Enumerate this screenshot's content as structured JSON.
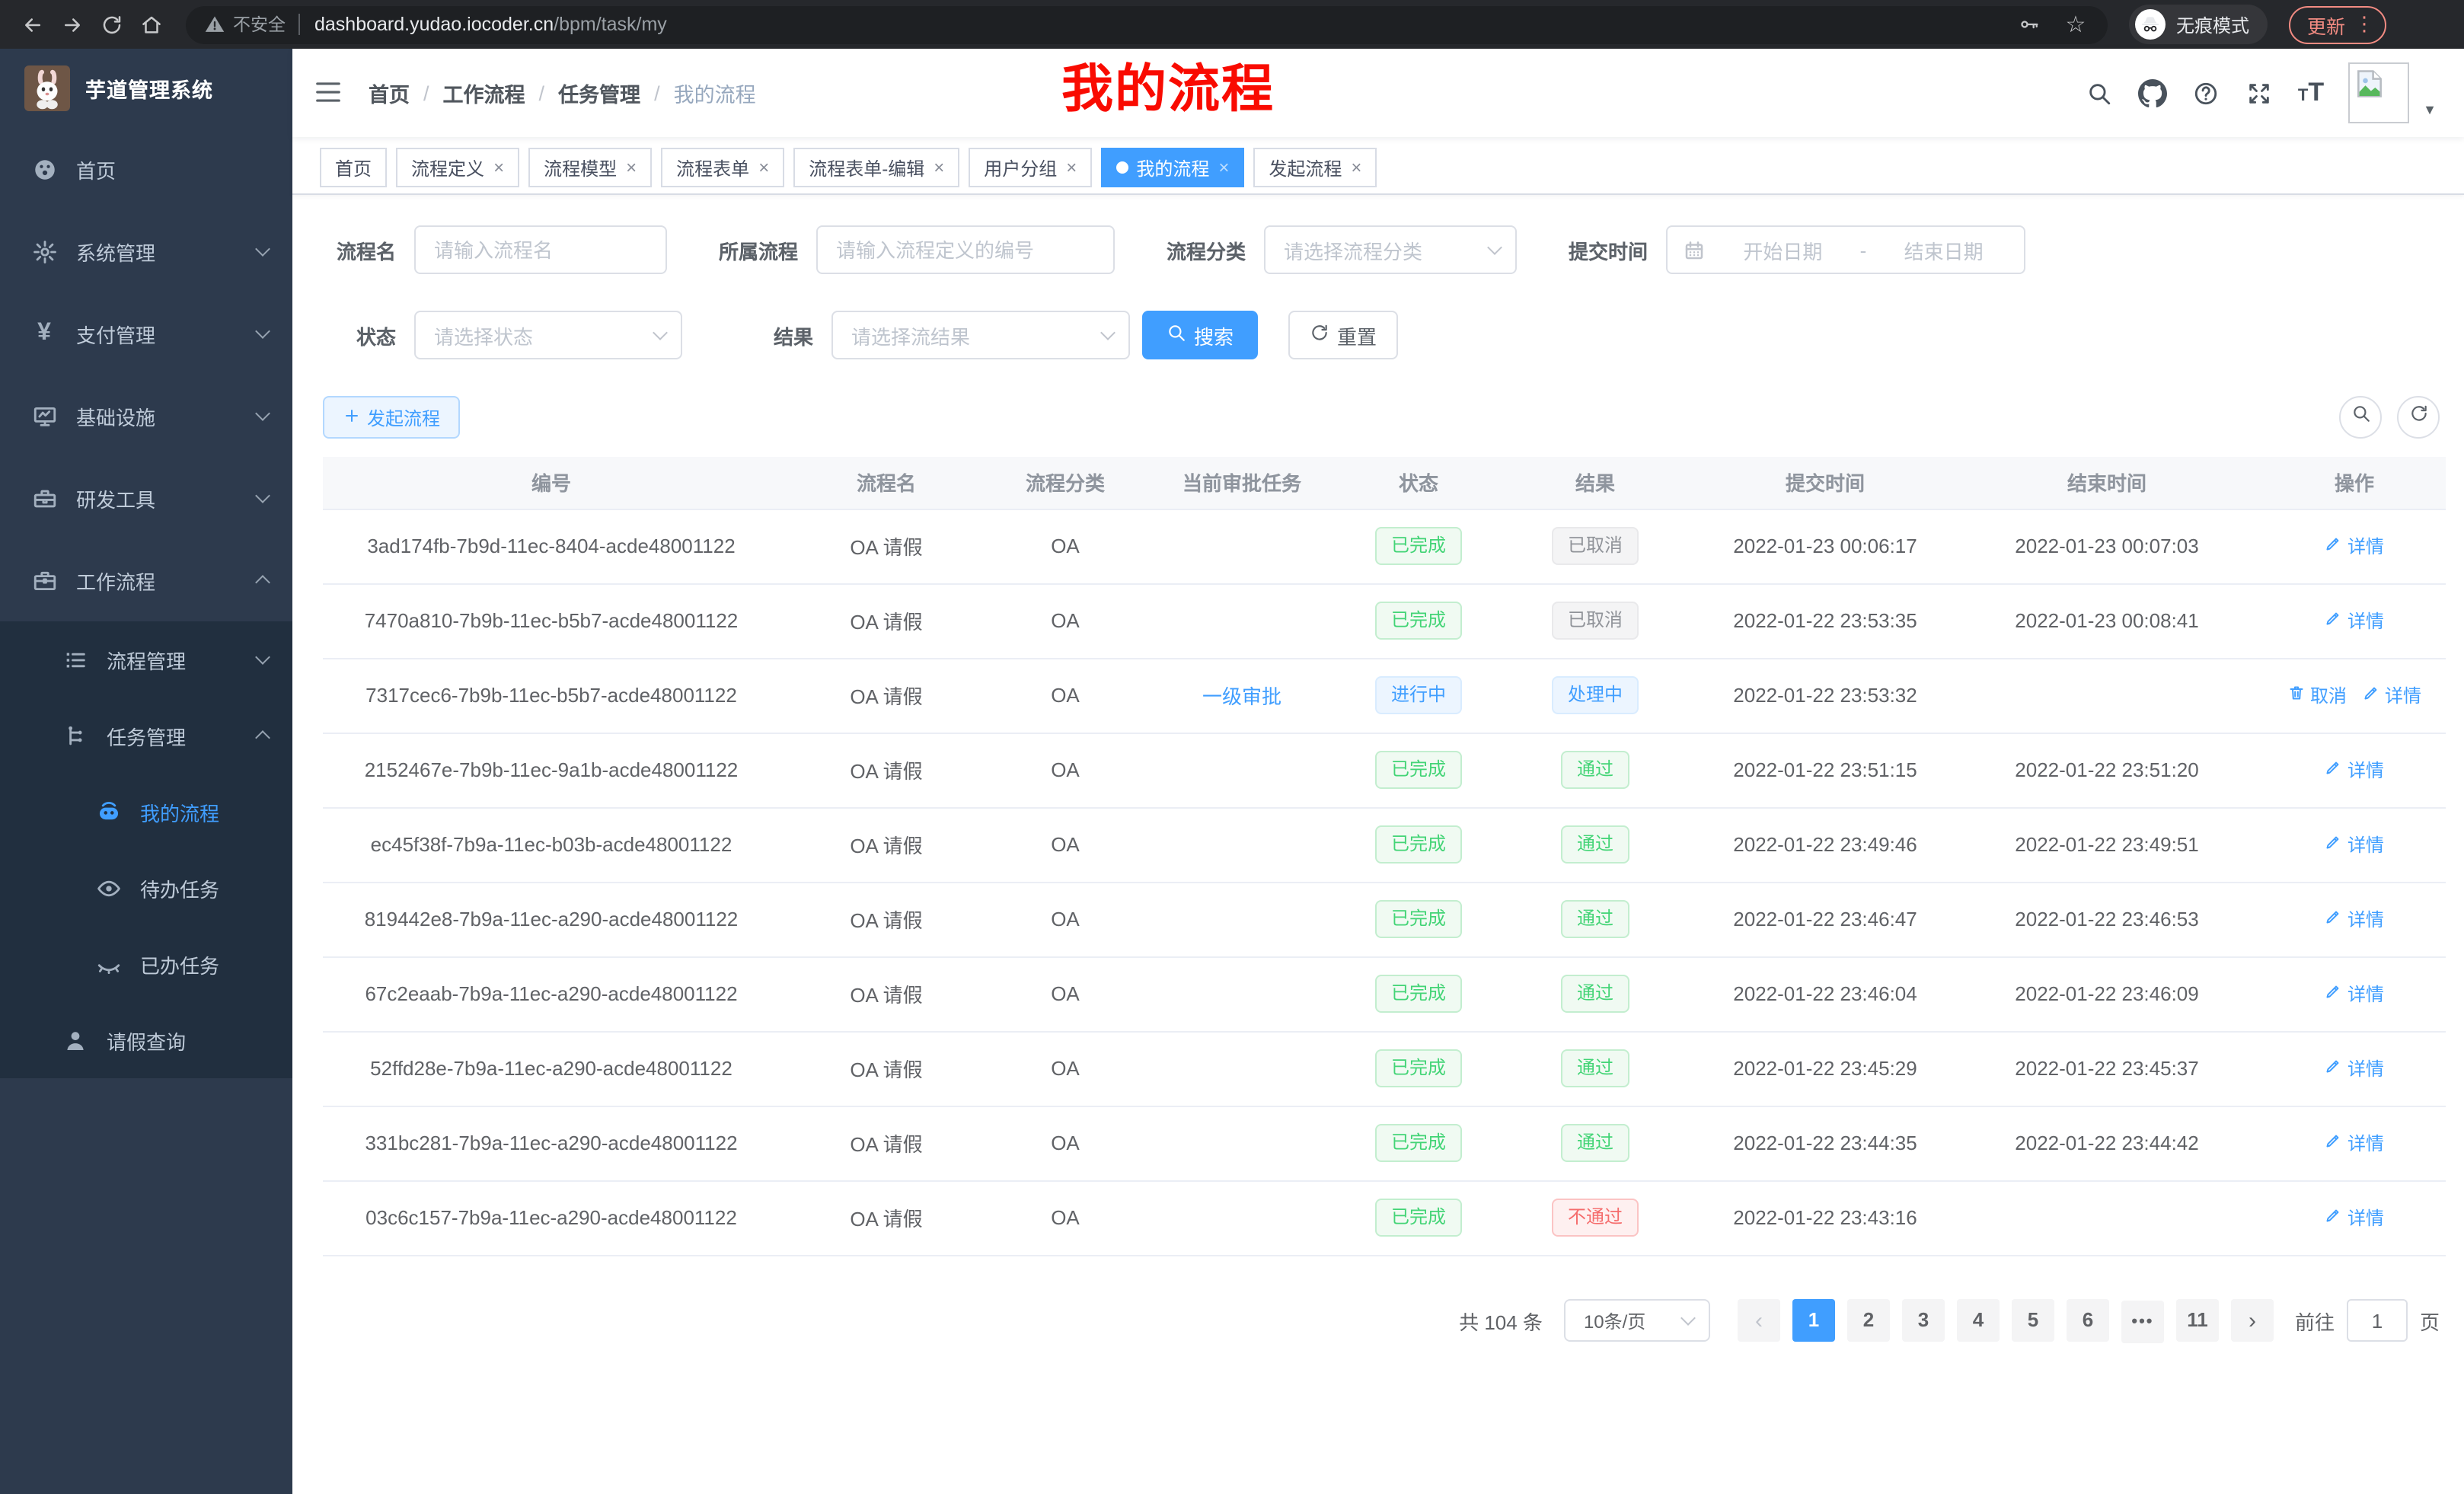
{
  "browser": {
    "security_label": "不安全",
    "url_host": "dashboard.yudao.iocoder.cn",
    "url_path": "/bpm/task/my",
    "incognito_label": "无痕模式",
    "update_label": "更新"
  },
  "colors": {
    "accent": "#409eff",
    "success": "#43d476",
    "info": "#909399",
    "danger": "#f56c6c",
    "annotation_red": "#f90b01",
    "sidebar_bg": "#2d3a4d",
    "submenu_bg": "#212f3f"
  },
  "sidebar": {
    "logo_title": "芋道管理系统",
    "items": [
      {
        "key": "home",
        "label": "首页",
        "icon": "dashboard-icon",
        "level": 1
      },
      {
        "key": "system",
        "label": "系统管理",
        "icon": "gear-icon",
        "level": 1,
        "chevron": "down"
      },
      {
        "key": "payment",
        "label": "支付管理",
        "icon": "yen-icon",
        "level": 1,
        "chevron": "down"
      },
      {
        "key": "infrastructure",
        "label": "基础设施",
        "icon": "monitor-icon",
        "level": 1,
        "chevron": "down"
      },
      {
        "key": "dev-tools",
        "label": "研发工具",
        "icon": "toolbox-icon",
        "level": 1,
        "chevron": "down"
      },
      {
        "key": "workflow",
        "label": "工作流程",
        "icon": "briefcase-icon",
        "level": 1,
        "chevron": "up"
      },
      {
        "key": "process-mgmt",
        "label": "流程管理",
        "icon": "list-icon",
        "level": 2,
        "chevron": "down"
      },
      {
        "key": "task-mgmt",
        "label": "任务管理",
        "icon": "tree-icon",
        "level": 2,
        "chevron": "up"
      },
      {
        "key": "my-process",
        "label": "我的流程",
        "icon": "robot-icon",
        "level": 3,
        "active": true
      },
      {
        "key": "todo-tasks",
        "label": "待办任务",
        "icon": "eye-icon",
        "level": 3
      },
      {
        "key": "done-tasks",
        "label": "已办任务",
        "icon": "eye-closed-icon",
        "level": 3
      },
      {
        "key": "leave-query",
        "label": "请假查询",
        "icon": "user-icon",
        "level": 2
      }
    ]
  },
  "header": {
    "breadcrumb": [
      "首页",
      "工作流程",
      "任务管理",
      "我的流程"
    ],
    "overlay_title": "我的流程",
    "right_icons": [
      "search-icon",
      "github-icon",
      "question-icon",
      "fullscreen-icon",
      "font-size-icon",
      "avatar",
      "caret-down-icon"
    ]
  },
  "tabs": [
    {
      "key": "home",
      "label": "首页",
      "closable": false,
      "active": false
    },
    {
      "key": "process-definition",
      "label": "流程定义",
      "closable": true,
      "active": false
    },
    {
      "key": "process-model",
      "label": "流程模型",
      "closable": true,
      "active": false
    },
    {
      "key": "process-form",
      "label": "流程表单",
      "closable": true,
      "active": false
    },
    {
      "key": "process-form-edit",
      "label": "流程表单-编辑",
      "closable": true,
      "active": false
    },
    {
      "key": "user-group",
      "label": "用户分组",
      "closable": true,
      "active": false
    },
    {
      "key": "my-process",
      "label": "我的流程",
      "closable": true,
      "active": true
    },
    {
      "key": "start-process",
      "label": "发起流程",
      "closable": true,
      "active": false
    }
  ],
  "filters": {
    "name_label": "流程名",
    "name_placeholder": "请输入流程名",
    "definition_label": "所属流程",
    "definition_placeholder": "请输入流程定义的编号",
    "category_label": "流程分类",
    "category_placeholder": "请选择流程分类",
    "time_label": "提交时间",
    "start_placeholder": "开始日期",
    "range_separator": "-",
    "end_placeholder": "结束日期",
    "status_label": "状态",
    "status_placeholder": "请选择状态",
    "result_label": "结果",
    "result_placeholder": "请选择流结果",
    "search_label": "搜索",
    "reset_label": "重置"
  },
  "toolbar": {
    "create_label": "发起流程"
  },
  "table": {
    "columns": [
      "编号",
      "流程名",
      "流程分类",
      "当前审批任务",
      "状态",
      "结果",
      "提交时间",
      "结束时间",
      "操作"
    ],
    "action_labels": {
      "detail": "详情",
      "cancel": "取消"
    },
    "rows": [
      {
        "id": "3ad174fb-7b9d-11ec-8404-acde48001122",
        "name": "OA 请假",
        "category": "OA",
        "task": "",
        "status": "已完成",
        "status_type": "success",
        "result": "已取消",
        "result_type": "info",
        "submit_time": "2022-01-23 00:06:17",
        "end_time": "2022-01-23 00:07:03",
        "actions": [
          "detail"
        ]
      },
      {
        "id": "7470a810-7b9b-11ec-b5b7-acde48001122",
        "name": "OA 请假",
        "category": "OA",
        "task": "",
        "status": "已完成",
        "status_type": "success",
        "result": "已取消",
        "result_type": "info",
        "submit_time": "2022-01-22 23:53:35",
        "end_time": "2022-01-23 00:08:41",
        "actions": [
          "detail"
        ]
      },
      {
        "id": "7317cec6-7b9b-11ec-b5b7-acde48001122",
        "name": "OA 请假",
        "category": "OA",
        "task": "一级审批",
        "status": "进行中",
        "status_type": "primary",
        "result": "处理中",
        "result_type": "primary",
        "submit_time": "2022-01-22 23:53:32",
        "end_time": "",
        "actions": [
          "cancel",
          "detail"
        ]
      },
      {
        "id": "2152467e-7b9b-11ec-9a1b-acde48001122",
        "name": "OA 请假",
        "category": "OA",
        "task": "",
        "status": "已完成",
        "status_type": "success",
        "result": "通过",
        "result_type": "success",
        "submit_time": "2022-01-22 23:51:15",
        "end_time": "2022-01-22 23:51:20",
        "actions": [
          "detail"
        ]
      },
      {
        "id": "ec45f38f-7b9a-11ec-b03b-acde48001122",
        "name": "OA 请假",
        "category": "OA",
        "task": "",
        "status": "已完成",
        "status_type": "success",
        "result": "通过",
        "result_type": "success",
        "submit_time": "2022-01-22 23:49:46",
        "end_time": "2022-01-22 23:49:51",
        "actions": [
          "detail"
        ]
      },
      {
        "id": "819442e8-7b9a-11ec-a290-acde48001122",
        "name": "OA 请假",
        "category": "OA",
        "task": "",
        "status": "已完成",
        "status_type": "success",
        "result": "通过",
        "result_type": "success",
        "submit_time": "2022-01-22 23:46:47",
        "end_time": "2022-01-22 23:46:53",
        "actions": [
          "detail"
        ]
      },
      {
        "id": "67c2eaab-7b9a-11ec-a290-acde48001122",
        "name": "OA 请假",
        "category": "OA",
        "task": "",
        "status": "已完成",
        "status_type": "success",
        "result": "通过",
        "result_type": "success",
        "submit_time": "2022-01-22 23:46:04",
        "end_time": "2022-01-22 23:46:09",
        "actions": [
          "detail"
        ]
      },
      {
        "id": "52ffd28e-7b9a-11ec-a290-acde48001122",
        "name": "OA 请假",
        "category": "OA",
        "task": "",
        "status": "已完成",
        "status_type": "success",
        "result": "通过",
        "result_type": "success",
        "submit_time": "2022-01-22 23:45:29",
        "end_time": "2022-01-22 23:45:37",
        "actions": [
          "detail"
        ]
      },
      {
        "id": "331bc281-7b9a-11ec-a290-acde48001122",
        "name": "OA 请假",
        "category": "OA",
        "task": "",
        "status": "已完成",
        "status_type": "success",
        "result": "通过",
        "result_type": "success",
        "submit_time": "2022-01-22 23:44:35",
        "end_time": "2022-01-22 23:44:42",
        "actions": [
          "detail"
        ]
      },
      {
        "id": "03c6c157-7b9a-11ec-a290-acde48001122",
        "name": "OA 请假",
        "category": "OA",
        "task": "",
        "status": "已完成",
        "status_type": "success",
        "result": "不通过",
        "result_type": "danger",
        "submit_time": "2022-01-22 23:43:16",
        "end_time": "",
        "actions": [
          "detail"
        ]
      }
    ]
  },
  "pagination": {
    "total_label": "共 104 条",
    "page_size": "10条/页",
    "pages": [
      "1",
      "2",
      "3",
      "4",
      "5",
      "6",
      "•••",
      "11"
    ],
    "active_page": "1",
    "goto_label": "前往",
    "goto_value": "1",
    "goto_unit": "页"
  }
}
